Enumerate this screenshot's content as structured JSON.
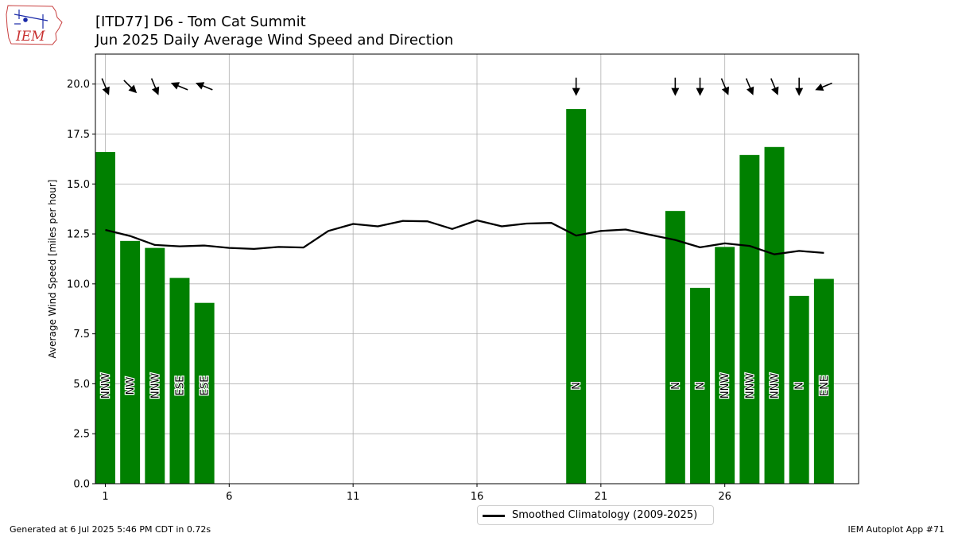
{
  "logo": {
    "text": "IEM"
  },
  "title": {
    "line1": "[ITD77] D6 - Tom Cat Summit",
    "line2": "Jun 2025 Daily Average Wind Speed and Direction"
  },
  "footer": {
    "left": "Generated at 6 Jul 2025 5:46 PM CDT in 0.72s",
    "right": "IEM Autoplot App #71"
  },
  "chart_data": {
    "type": "bar",
    "ylabel": "Average Wind Speed [miles per hour]",
    "xlabel": "",
    "ylim": [
      0,
      21.5
    ],
    "xlim": [
      0.6,
      31.4
    ],
    "yticks": [
      0.0,
      2.5,
      5.0,
      7.5,
      10.0,
      12.5,
      15.0,
      17.5,
      20.0
    ],
    "ytick_labels": [
      "0.0",
      "2.5",
      "5.0",
      "7.5",
      "10.0",
      "12.5",
      "15.0",
      "17.5",
      "20.0"
    ],
    "xticks": [
      1,
      6,
      11,
      16,
      21,
      26
    ],
    "xtick_labels": [
      "1",
      "6",
      "11",
      "16",
      "21",
      "26"
    ],
    "grid": true,
    "bar_color": "#008000",
    "bars": [
      {
        "day": 1,
        "value": 16.6,
        "dir": "NNW",
        "deg": 337.5
      },
      {
        "day": 2,
        "value": 12.15,
        "dir": "NW",
        "deg": 315
      },
      {
        "day": 3,
        "value": 11.8,
        "dir": "NNW",
        "deg": 337.5
      },
      {
        "day": 4,
        "value": 10.3,
        "dir": "ESE",
        "deg": 112.5
      },
      {
        "day": 5,
        "value": 9.05,
        "dir": "ESE",
        "deg": 112.5
      },
      {
        "day": 20,
        "value": 18.75,
        "dir": "N",
        "deg": 0
      },
      {
        "day": 24,
        "value": 13.65,
        "dir": "N",
        "deg": 0
      },
      {
        "day": 25,
        "value": 9.8,
        "dir": "N",
        "deg": 0
      },
      {
        "day": 26,
        "value": 11.85,
        "dir": "NNW",
        "deg": 337.5
      },
      {
        "day": 27,
        "value": 16.45,
        "dir": "NNW",
        "deg": 337.5
      },
      {
        "day": 28,
        "value": 16.85,
        "dir": "NNW",
        "deg": 337.5
      },
      {
        "day": 29,
        "value": 9.4,
        "dir": "N",
        "deg": 0
      },
      {
        "day": 30,
        "value": 10.25,
        "dir": "ENE",
        "deg": 67.5
      }
    ],
    "series": [
      {
        "name": "Smoothed Climatology (2009-2025)",
        "color": "#000000",
        "x": [
          1,
          2,
          3,
          4,
          5,
          6,
          7,
          8,
          9,
          10,
          11,
          12,
          13,
          14,
          15,
          16,
          17,
          18,
          19,
          20,
          21,
          22,
          23,
          24,
          25,
          26,
          27,
          28,
          29,
          30
        ],
        "values": [
          12.7,
          12.4,
          11.95,
          11.88,
          11.92,
          11.8,
          11.75,
          11.85,
          11.82,
          12.65,
          13.0,
          12.88,
          13.15,
          13.13,
          12.75,
          13.18,
          12.88,
          13.02,
          13.05,
          12.42,
          12.65,
          12.72,
          12.45,
          12.2,
          11.83,
          12.03,
          11.9,
          11.48,
          11.65,
          11.55
        ]
      }
    ],
    "legend": {
      "placement": "below-center"
    }
  }
}
